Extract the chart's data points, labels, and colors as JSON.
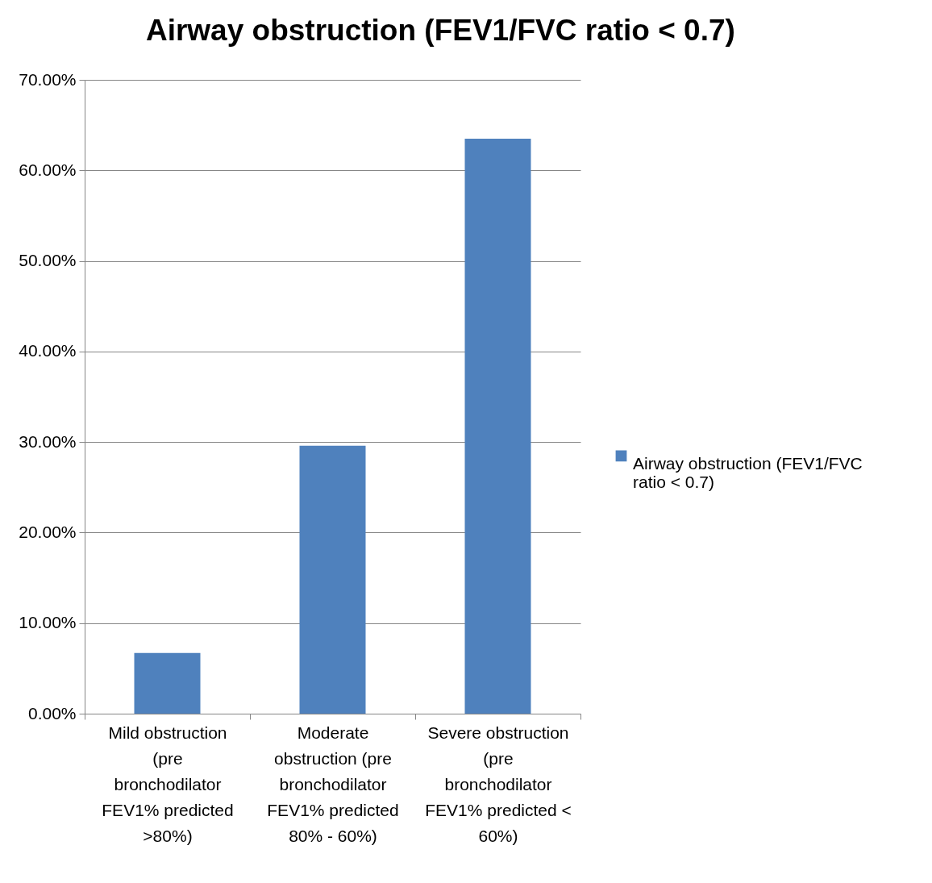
{
  "chart_data": {
    "type": "bar",
    "title": "Airway obstruction (FEV1/FVC ratio < 0.7)",
    "categories": [
      "Mild obstruction (pre bronchodilator FEV1% predicted >80%)",
      "Moderate obstruction (pre bronchodilator FEV1% predicted 80% - 60%)",
      "Severe obstruction (pre bronchodilator FEV1% predicted < 60%)"
    ],
    "series": [
      {
        "name": "Airway obstruction (FEV1/FVC ratio < 0.7)",
        "color": "#4f81bd",
        "values": [
          6.7,
          29.6,
          63.5
        ]
      }
    ],
    "ylim": [
      0,
      70
    ],
    "yticks": [
      {
        "value": 0,
        "label": "0.00%"
      },
      {
        "value": 10,
        "label": "10.00%"
      },
      {
        "value": 20,
        "label": "20.00%"
      },
      {
        "value": 30,
        "label": "30.00%"
      },
      {
        "value": 40,
        "label": "40.00%"
      },
      {
        "value": 50,
        "label": "50.00%"
      },
      {
        "value": 60,
        "label": "60.00%"
      },
      {
        "value": 70,
        "label": "70.00%"
      }
    ],
    "grid": "y",
    "legend": "right"
  }
}
